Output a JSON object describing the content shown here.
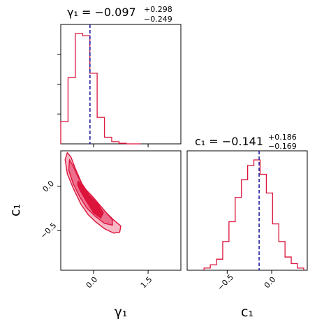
{
  "chart_data": [
    {
      "type": "histogram",
      "panel": "gamma1-marginal",
      "title_lhs": "γ₁ = −0.097",
      "title_plus": "+0.298",
      "title_minus": "−0.249",
      "xlim": [
        -0.9,
        2.4
      ],
      "bin_edges": [
        -0.9,
        -0.7,
        -0.5,
        -0.3,
        -0.1,
        0.1,
        0.3,
        0.5,
        0.7,
        0.9,
        1.1,
        1.3
      ],
      "counts": [
        0.2,
        0.6,
        1.0,
        0.98,
        0.64,
        0.24,
        0.06,
        0.02,
        0.005,
        0,
        0
      ],
      "median": -0.097,
      "median_line_color": "#1f1fa0",
      "hist_color": "#dc143c"
    },
    {
      "type": "contour",
      "panel": "joint",
      "xlim": [
        -0.9,
        2.4
      ],
      "ylim": [
        -0.95,
        0.4
      ],
      "xlabel": "γ₁",
      "ylabel": "c₁",
      "xticks": [
        0.0,
        1.5
      ],
      "xtick_labels": [
        "0.0",
        "1.5"
      ],
      "yticks": [
        0.0,
        -0.5
      ],
      "ytick_labels": [
        "0.0",
        "−0.5"
      ],
      "levels": [
        {
          "name": "outer",
          "fill_color": "#f7b8c6",
          "line_color": "#dc143c",
          "points": [
            [
              -0.72,
              0.38
            ],
            [
              -0.62,
              0.33
            ],
            [
              -0.5,
              0.2
            ],
            [
              -0.32,
              0.03
            ],
            [
              -0.12,
              -0.09
            ],
            [
              0.12,
              -0.2
            ],
            [
              0.35,
              -0.3
            ],
            [
              0.55,
              -0.38
            ],
            [
              0.75,
              -0.45
            ],
            [
              0.72,
              -0.52
            ],
            [
              0.55,
              -0.53
            ],
            [
              0.3,
              -0.48
            ],
            [
              0.05,
              -0.4
            ],
            [
              -0.15,
              -0.32
            ],
            [
              -0.35,
              -0.2
            ],
            [
              -0.55,
              -0.03
            ],
            [
              -0.72,
              0.14
            ],
            [
              -0.78,
              0.3
            ]
          ]
        },
        {
          "name": "middle",
          "fill_color": "#ee6f8d",
          "line_color": "#dc143c",
          "points": [
            [
              -0.66,
              0.3
            ],
            [
              -0.55,
              0.22
            ],
            [
              -0.42,
              0.1
            ],
            [
              -0.25,
              -0.02
            ],
            [
              -0.02,
              -0.12
            ],
            [
              0.25,
              -0.25
            ],
            [
              0.52,
              -0.38
            ],
            [
              0.52,
              -0.44
            ],
            [
              0.3,
              -0.42
            ],
            [
              0.05,
              -0.34
            ],
            [
              -0.18,
              -0.25
            ],
            [
              -0.38,
              -0.12
            ],
            [
              -0.56,
              0.03
            ],
            [
              -0.68,
              0.18
            ]
          ]
        },
        {
          "name": "inner",
          "fill_color": "#dc143c",
          "line_color": "#dc143c",
          "points": [
            [
              -0.42,
              0.06
            ],
            [
              -0.28,
              0.0
            ],
            [
              -0.12,
              -0.1
            ],
            [
              0.12,
              -0.2
            ],
            [
              0.27,
              -0.3
            ],
            [
              0.2,
              -0.36
            ],
            [
              0.0,
              -0.3
            ],
            [
              -0.18,
              -0.18
            ],
            [
              -0.38,
              -0.04
            ],
            [
              -0.44,
              0.02
            ]
          ]
        }
      ]
    },
    {
      "type": "histogram",
      "panel": "c1-marginal",
      "title_lhs": "c₁ = −0.141",
      "title_plus": "+0.186",
      "title_minus": "−0.169",
      "xlim": [
        -0.95,
        0.4
      ],
      "xlabel": "c₁",
      "xticks": [
        -0.5,
        0.0
      ],
      "xtick_labels": [
        "−0.5",
        "0.0"
      ],
      "bin_edges": [
        -0.76,
        -0.69,
        -0.62,
        -0.55,
        -0.48,
        -0.41,
        -0.34,
        -0.27,
        -0.2,
        -0.13,
        -0.06,
        0.01,
        0.08,
        0.15,
        0.22,
        0.29,
        0.36
      ],
      "counts": [
        0.02,
        0.05,
        0.1,
        0.26,
        0.44,
        0.66,
        0.82,
        0.95,
        1.0,
        0.87,
        0.7,
        0.42,
        0.26,
        0.12,
        0.06,
        0.02
      ],
      "median": -0.141,
      "median_line_color": "#1f1fa0",
      "hist_color": "#dc143c"
    }
  ]
}
